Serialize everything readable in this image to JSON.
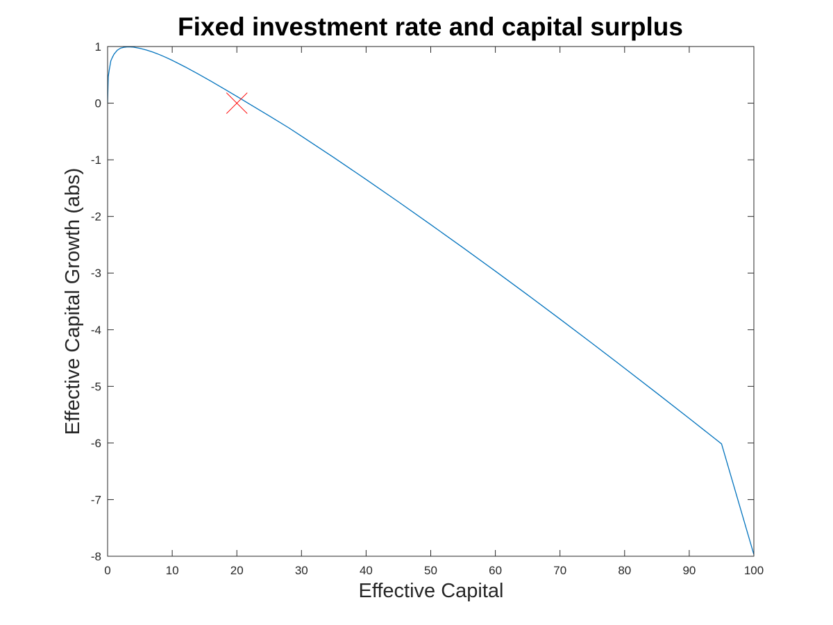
{
  "chart_data": {
    "type": "line",
    "title": "Fixed investment rate and capital surplus",
    "xlabel": "Effective Capital",
    "ylabel": "Effective Capital Growth (abs)",
    "xlim": [
      0,
      100
    ],
    "ylim": [
      -8,
      1
    ],
    "xticks": [
      0,
      10,
      20,
      30,
      40,
      50,
      60,
      70,
      80,
      90,
      100
    ],
    "yticks": [
      -8,
      -7,
      -6,
      -5,
      -4,
      -3,
      -2,
      -1,
      0,
      1
    ],
    "xtick_labels": [
      "0",
      "10",
      "20",
      "30",
      "40",
      "50",
      "60",
      "70",
      "80",
      "90",
      "100"
    ],
    "ytick_labels": [
      "-8",
      "-7",
      "-6",
      "-5",
      "-4",
      "-3",
      "-2",
      "-1",
      "0",
      "1"
    ],
    "grid": false,
    "series": [
      {
        "color": "#0072bd",
        "marker": "none",
        "x": [
          0,
          0.1,
          0.25,
          0.5,
          0.75,
          1,
          1.5,
          2,
          2.5,
          3,
          3.5,
          4,
          5,
          6,
          7,
          8,
          9,
          10,
          12,
          14,
          16,
          18,
          20,
          22,
          25,
          28,
          30,
          35,
          40,
          45,
          50,
          55,
          60,
          65,
          70,
          75,
          80,
          85,
          90,
          95,
          100
        ],
        "y": [
          0,
          0.466,
          0.583,
          0.747,
          0.811,
          0.866,
          0.935,
          0.971,
          0.986,
          0.992,
          0.993,
          0.989,
          0.968,
          0.939,
          0.902,
          0.858,
          0.809,
          0.756,
          0.64,
          0.516,
          0.387,
          0.254,
          0.12,
          -0.018,
          -0.224,
          -0.433,
          -0.582,
          -0.96,
          -1.347,
          -1.742,
          -2.144,
          -2.552,
          -2.966,
          -3.386,
          -3.812,
          -4.243,
          -4.68,
          -5.121,
          -5.566,
          -6.016,
          -7.97
        ]
      },
      {
        "color": "#ff0000",
        "marker": "x",
        "x": [
          20
        ],
        "y": [
          0
        ]
      }
    ]
  }
}
